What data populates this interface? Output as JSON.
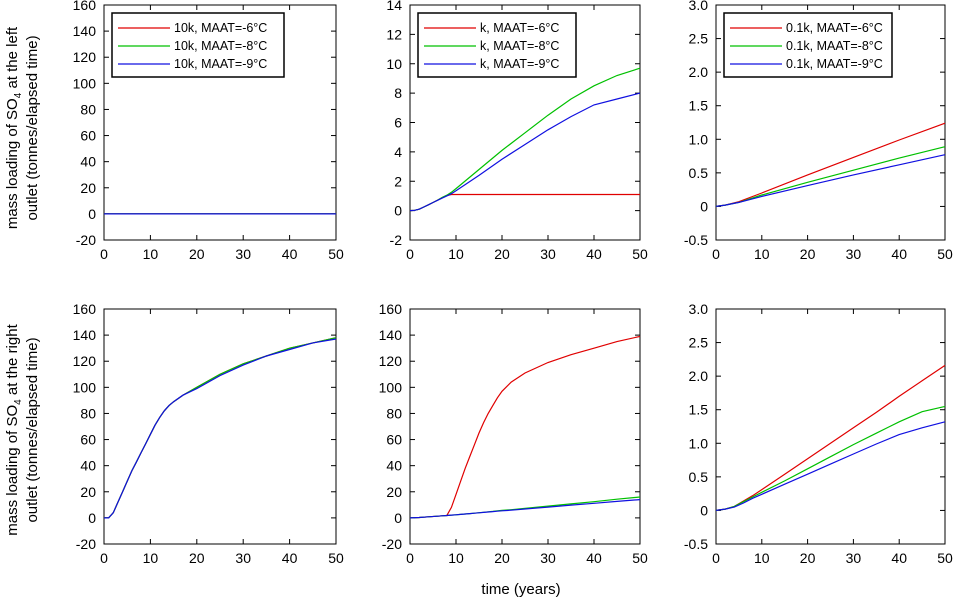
{
  "colors": {
    "red": "#e00000",
    "green": "#00c000",
    "blue": "#1010e0"
  },
  "figure": {
    "ylabel_top_line1": "mass loading of SO",
    "ylabel_top_sub": "4",
    "ylabel_top_line1b": " at the left",
    "ylabel_top_line2": "outlet (tonnes/elapsed time)",
    "ylabel_bottom_line1": "mass loading of SO",
    "ylabel_bottom_sub": "4",
    "ylabel_bottom_line1b": " at the right",
    "ylabel_bottom_line2": "outlet (tonnes/elapsed time)",
    "xlabel": "time (years)"
  },
  "chart_data": [
    {
      "id": "top-left",
      "type": "line",
      "ylim": [
        -20,
        160
      ],
      "yticks": [
        "-20",
        "0",
        "20",
        "40",
        "60",
        "80",
        "100",
        "120",
        "140",
        "160"
      ],
      "xlim": [
        0,
        50
      ],
      "xticks": [
        "0",
        "10",
        "20",
        "30",
        "40",
        "50"
      ],
      "legend": [
        "10k, MAAT=-6°C",
        "10k, MAAT=-8°C",
        "10k, MAAT=-9°C"
      ],
      "x": [
        0,
        5,
        10,
        15,
        20,
        25,
        30,
        35,
        40,
        45,
        50
      ],
      "series": [
        {
          "name": "10k, MAAT=-6°C",
          "color": "red",
          "values": [
            0,
            0,
            0,
            0,
            0,
            0,
            0,
            0,
            0,
            0,
            0
          ]
        },
        {
          "name": "10k, MAAT=-8°C",
          "color": "green",
          "values": [
            0,
            0,
            0,
            0,
            0,
            0,
            0,
            0,
            0,
            0,
            0
          ]
        },
        {
          "name": "10k, MAAT=-9°C",
          "color": "blue",
          "values": [
            0,
            0,
            0,
            0,
            0,
            0,
            0,
            0,
            0,
            0,
            0
          ]
        }
      ]
    },
    {
      "id": "top-mid",
      "type": "line",
      "ylim": [
        -2,
        14
      ],
      "yticks": [
        "-2",
        "0",
        "2",
        "4",
        "6",
        "8",
        "10",
        "12",
        "14"
      ],
      "xlim": [
        0,
        50
      ],
      "xticks": [
        "0",
        "10",
        "20",
        "30",
        "40",
        "50"
      ],
      "legend": [
        "k, MAAT=-6°C",
        "k, MAAT=-8°C",
        "k, MAAT=-9°C"
      ],
      "x": [
        0,
        1,
        2,
        3,
        4,
        5,
        6,
        7,
        8,
        9,
        10,
        15,
        20,
        25,
        30,
        35,
        40,
        45,
        50
      ],
      "series": [
        {
          "name": "k, MAAT=-6°C",
          "color": "red",
          "values": [
            0,
            0.02,
            0.1,
            0.25,
            0.4,
            0.55,
            0.72,
            0.88,
            1.02,
            1.1,
            1.1,
            1.1,
            1.1,
            1.1,
            1.1,
            1.1,
            1.1,
            1.1,
            1.1
          ]
        },
        {
          "name": "k, MAAT=-8°C",
          "color": "green",
          "values": [
            0,
            0.02,
            0.1,
            0.25,
            0.4,
            0.55,
            0.72,
            0.9,
            1.05,
            1.25,
            1.5,
            2.8,
            4.1,
            5.3,
            6.5,
            7.6,
            8.5,
            9.2,
            9.7
          ]
        },
        {
          "name": "k, MAAT=-9°C",
          "color": "blue",
          "values": [
            0,
            0.02,
            0.1,
            0.25,
            0.4,
            0.55,
            0.7,
            0.85,
            1.0,
            1.15,
            1.35,
            2.4,
            3.5,
            4.5,
            5.5,
            6.4,
            7.2,
            7.6,
            8.0
          ]
        }
      ]
    },
    {
      "id": "top-right",
      "type": "line",
      "ylim": [
        -0.5,
        3.0
      ],
      "yticks": [
        "-0.5",
        "0",
        "0.5",
        "1.0",
        "1.5",
        "2.0",
        "2.5",
        "3.0"
      ],
      "xlim": [
        0,
        50
      ],
      "xticks": [
        "0",
        "10",
        "20",
        "30",
        "40",
        "50"
      ],
      "legend": [
        "0.1k, MAAT=-6°C",
        "0.1k, MAAT=-8°C",
        "0.1k, MAAT=-9°C"
      ],
      "x": [
        0,
        2,
        5,
        10,
        20,
        30,
        40,
        50
      ],
      "series": [
        {
          "name": "0.1k, MAAT=-6°C",
          "color": "red",
          "values": [
            0,
            0.02,
            0.07,
            0.2,
            0.47,
            0.73,
            0.99,
            1.24
          ]
        },
        {
          "name": "0.1k, MAAT=-8°C",
          "color": "green",
          "values": [
            0,
            0.02,
            0.06,
            0.17,
            0.36,
            0.54,
            0.72,
            0.89
          ]
        },
        {
          "name": "0.1k, MAAT=-9°C",
          "color": "blue",
          "values": [
            0,
            0.02,
            0.06,
            0.15,
            0.31,
            0.47,
            0.62,
            0.77
          ]
        }
      ]
    },
    {
      "id": "bottom-left",
      "type": "line",
      "ylim": [
        -20,
        160
      ],
      "yticks": [
        "-20",
        "0",
        "20",
        "40",
        "60",
        "80",
        "100",
        "120",
        "140",
        "160"
      ],
      "xlim": [
        0,
        50
      ],
      "xticks": [
        "0",
        "10",
        "20",
        "30",
        "40",
        "50"
      ],
      "legend": [],
      "x": [
        0,
        1,
        2,
        3,
        4,
        5,
        6,
        7,
        8,
        9,
        10,
        11,
        12,
        13,
        14,
        15,
        17,
        20,
        25,
        30,
        35,
        40,
        45,
        50
      ],
      "series": [
        {
          "name": "10k, MAAT=-6°C",
          "color": "red",
          "values": [
            0,
            0,
            4,
            12,
            20,
            28,
            36,
            43,
            50,
            57,
            64,
            71,
            77,
            82,
            86,
            89,
            94,
            100,
            110,
            118,
            124,
            130,
            134,
            138
          ]
        },
        {
          "name": "10k, MAAT=-8°C",
          "color": "green",
          "values": [
            0,
            0,
            4,
            12,
            20,
            28,
            36,
            43,
            50,
            57,
            64,
            71,
            77,
            82,
            86,
            89,
            94,
            100,
            110,
            118,
            124,
            130,
            134,
            138
          ]
        },
        {
          "name": "10k, MAAT=-9°C",
          "color": "blue",
          "values": [
            0,
            0,
            4,
            12,
            20,
            28,
            36,
            43,
            50,
            57,
            64,
            71,
            77,
            82,
            86,
            89,
            94,
            99,
            109,
            117,
            124,
            129,
            134,
            137
          ]
        }
      ]
    },
    {
      "id": "bottom-mid",
      "type": "line",
      "ylim": [
        -20,
        160
      ],
      "yticks": [
        "-20",
        "0",
        "20",
        "40",
        "60",
        "80",
        "100",
        "120",
        "140",
        "160"
      ],
      "xlim": [
        0,
        50
      ],
      "xticks": [
        "0",
        "10",
        "20",
        "30",
        "40",
        "50"
      ],
      "legend": [],
      "x": [
        0,
        2,
        4,
        6,
        7,
        8,
        9,
        10,
        11,
        12,
        13,
        14,
        15,
        16,
        17,
        18,
        19,
        20,
        22,
        25,
        30,
        35,
        40,
        45,
        50
      ],
      "series": [
        {
          "name": "k, MAAT=-6°C",
          "color": "red",
          "values": [
            0,
            0.3,
            0.8,
            1.3,
            1.6,
            1.8,
            8,
            18,
            28,
            38,
            47,
            56,
            65,
            73,
            80,
            86,
            92,
            97,
            104,
            111,
            119,
            125,
            130,
            135,
            139
          ]
        },
        {
          "name": "k, MAAT=-8°C",
          "color": "green",
          "values": [
            0,
            0.3,
            0.8,
            1.3,
            1.6,
            1.8,
            2.1,
            2.4,
            2.7,
            3,
            3.3,
            3.6,
            4,
            4.3,
            4.7,
            5,
            5.4,
            5.7,
            6.3,
            7.3,
            9,
            10.7,
            12.4,
            14.3,
            16
          ]
        },
        {
          "name": "k, MAAT=-9°C",
          "color": "blue",
          "values": [
            0,
            0.3,
            0.8,
            1.3,
            1.6,
            1.8,
            2.1,
            2.4,
            2.7,
            3,
            3.3,
            3.6,
            3.9,
            4.2,
            4.5,
            4.8,
            5.1,
            5.4,
            5.9,
            6.8,
            8.3,
            9.8,
            11.2,
            12.6,
            14
          ]
        }
      ]
    },
    {
      "id": "bottom-right",
      "type": "line",
      "ylim": [
        -0.5,
        3.0
      ],
      "yticks": [
        "-0.5",
        "0",
        "0.5",
        "1.0",
        "1.5",
        "2.0",
        "2.5",
        "3.0"
      ],
      "xlim": [
        0,
        50
      ],
      "xticks": [
        "0",
        "10",
        "20",
        "30",
        "40",
        "50"
      ],
      "legend": [],
      "x": [
        0,
        2,
        4,
        6,
        8,
        10,
        15,
        20,
        25,
        30,
        35,
        40,
        45,
        50
      ],
      "series": [
        {
          "name": "0.1k, MAAT=-6°C",
          "color": "red",
          "values": [
            0,
            0.02,
            0.06,
            0.14,
            0.22,
            0.31,
            0.54,
            0.77,
            1.0,
            1.23,
            1.46,
            1.7,
            1.93,
            2.16
          ]
        },
        {
          "name": "0.1k, MAAT=-8°C",
          "color": "green",
          "values": [
            0,
            0.02,
            0.06,
            0.13,
            0.2,
            0.27,
            0.44,
            0.62,
            0.8,
            0.98,
            1.15,
            1.32,
            1.47,
            1.55
          ]
        },
        {
          "name": "0.1k, MAAT=-9°C",
          "color": "blue",
          "values": [
            0,
            0.02,
            0.05,
            0.11,
            0.18,
            0.24,
            0.39,
            0.54,
            0.69,
            0.84,
            0.99,
            1.13,
            1.23,
            1.32
          ]
        }
      ]
    }
  ]
}
